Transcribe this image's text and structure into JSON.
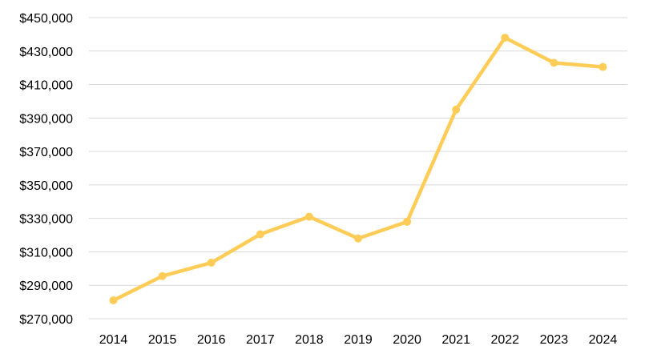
{
  "chart_data": {
    "type": "line",
    "title": "",
    "xlabel": "",
    "ylabel": "",
    "categories": [
      "2014",
      "2015",
      "2016",
      "2017",
      "2018",
      "2019",
      "2020",
      "2021",
      "2022",
      "2023",
      "2024"
    ],
    "series": [
      {
        "values": [
          281000,
          295500,
          303500,
          320500,
          331000,
          318000,
          328000,
          395000,
          438000,
          423000,
          420500
        ],
        "color": "#FFC000"
      }
    ],
    "ylim": [
      270000,
      450000
    ],
    "y_ticks": [
      270000,
      290000,
      310000,
      330000,
      350000,
      370000,
      390000,
      410000,
      430000,
      450000
    ],
    "y_tick_labels": [
      "$270,000",
      "$290,000",
      "$310,000",
      "$330,000",
      "$350,000",
      "$370,000",
      "$390,000",
      "$410,000",
      "$430,000",
      "$450,000"
    ],
    "grid": true,
    "legend": "none",
    "markers": true,
    "line_color": "#FFCD57"
  }
}
